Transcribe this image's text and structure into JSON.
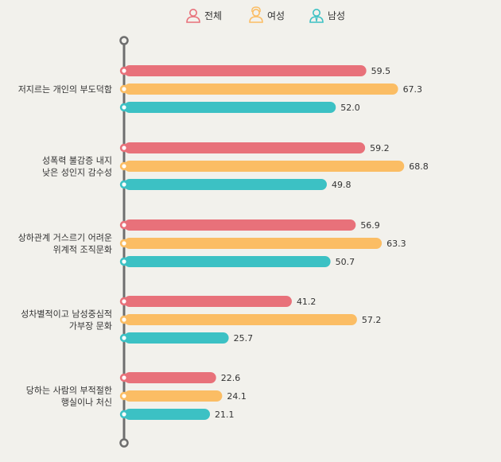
{
  "colors": {
    "전체": "#e8717a",
    "여성": "#fbbd64",
    "남성": "#3cc1c4",
    "axis": "#6e6e6e",
    "text": "#333333",
    "background": "#f2f1ec"
  },
  "legend": [
    {
      "label": "전체",
      "icon": "person-icon"
    },
    {
      "label": "여성",
      "icon": "woman-icon"
    },
    {
      "label": "남성",
      "icon": "man-icon"
    }
  ],
  "chart_data": {
    "type": "bar",
    "orientation": "horizontal",
    "title": "",
    "xlabel": "",
    "ylabel": "",
    "xlim": [
      0,
      70
    ],
    "grid": false,
    "legend_position": "top",
    "categories": [
      [
        "저지르는 개인의 부도덕함"
      ],
      [
        "성폭력 불감증 내지",
        "낮은 성인지 감수성"
      ],
      [
        "상하관계 거스르기 어려운",
        "위계적 조직문화"
      ],
      [
        "성차별적이고 남성중심적",
        "가부장 문화"
      ],
      [
        "당하는 사람의 부적절한",
        "행실이나 처신"
      ]
    ],
    "series": [
      {
        "name": "전체",
        "values": [
          59.5,
          59.2,
          56.9,
          41.2,
          22.6
        ]
      },
      {
        "name": "여성",
        "values": [
          67.3,
          68.8,
          63.3,
          57.2,
          24.1
        ]
      },
      {
        "name": "남성",
        "values": [
          52.0,
          49.8,
          50.7,
          25.7,
          21.1
        ]
      }
    ]
  }
}
